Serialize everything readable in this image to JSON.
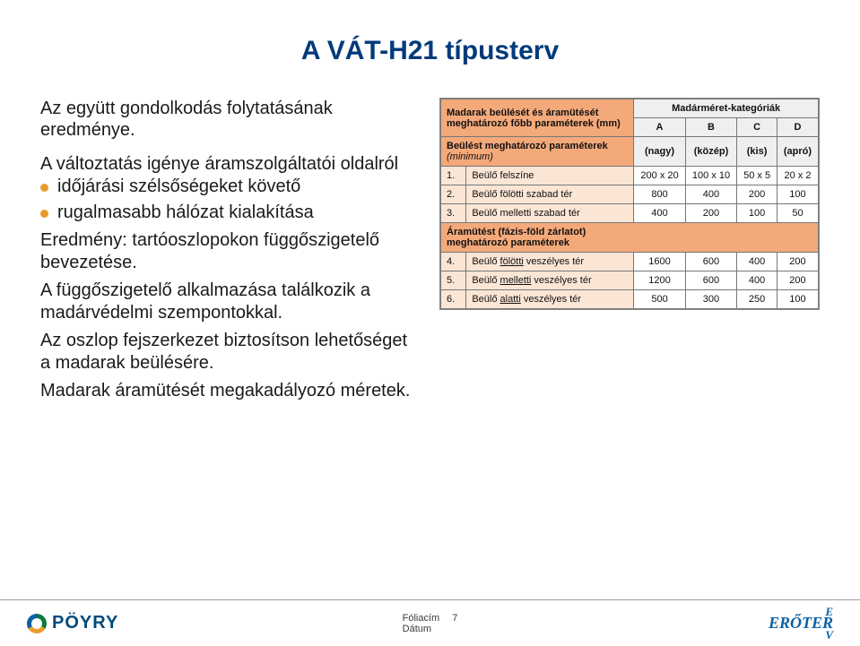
{
  "title": "A VÁT-H21 típusterv",
  "lead_text": "Az együtt gondolkodás folytatásának eredménye.",
  "change_intro": "A változtatás igénye áramszolgáltatói oldalról",
  "bullets": [
    "időjárási szélsőségeket követő",
    "rugalmasabb hálózat kialakítása"
  ],
  "result_text": "Eredmény: tartóoszlopokon függőszigetelő bevezetése.",
  "para2": "A függőszigetelő alkalmazása találkozik a madárvédelmi szempontokkal.",
  "para3": "Az oszlop fejszerkezet biztosítson lehetőséget a madarak beülésére.",
  "para4": "Madarak áramütését  megakadályozó méretek.",
  "table": {
    "header_left_l1": "Madarak beülését és áramütését",
    "header_left_l2": "meghatározó főbb paraméterek (mm)",
    "header_cat": "Madárméret-kategóriák",
    "section1": "Beülést meghatározó paraméterek",
    "section1_sub": "(minimum)",
    "section2_l1": "Áramütést (fázis-föld zárlatot)",
    "section2_l2": "meghatározó paraméterek",
    "cat_cols": [
      "A",
      "B",
      "C",
      "D"
    ],
    "cat_labels": [
      "(nagy)",
      "(közép)",
      "(kis)",
      "(apró)"
    ],
    "rows1": [
      {
        "n": "1.",
        "label": "Beülő felszíne",
        "vals": [
          "200 x 20",
          "100 x 10",
          "50 x 5",
          "20 x 2"
        ]
      },
      {
        "n": "2.",
        "label": "Beülő fölötti szabad tér",
        "vals": [
          "800",
          "400",
          "200",
          "100"
        ]
      },
      {
        "n": "3.",
        "label": "Beülő melletti szabad tér",
        "vals": [
          "400",
          "200",
          "100",
          "50"
        ]
      }
    ],
    "rows2": [
      {
        "n": "4.",
        "pre": "Beülő ",
        "u": "fölötti",
        "post": " veszélyes tér",
        "vals": [
          "1600",
          "600",
          "400",
          "200"
        ]
      },
      {
        "n": "5.",
        "pre": "Beülő ",
        "u": "melletti",
        "post": " veszélyes tér",
        "vals": [
          "1200",
          "600",
          "400",
          "200"
        ]
      },
      {
        "n": "6.",
        "pre": "Beülő ",
        "u": "alatti",
        "post": " veszélyes tér",
        "vals": [
          "500",
          "300",
          "250",
          "100"
        ]
      }
    ]
  },
  "footer": {
    "logo_left": "PÖYRY",
    "center_label": "Fóliacím",
    "page_num": "7",
    "date_label": "Dátum",
    "logo_right_top": "E",
    "logo_right_mid": "ERŐTER",
    "logo_right_bot": "V"
  },
  "colors": {
    "title_color": "#003a7a",
    "bullet_color": "#e89b2e",
    "table_header_bg": "#f4a97a",
    "row_label_bg": "#fbe6d6",
    "border_color": "#777777"
  }
}
